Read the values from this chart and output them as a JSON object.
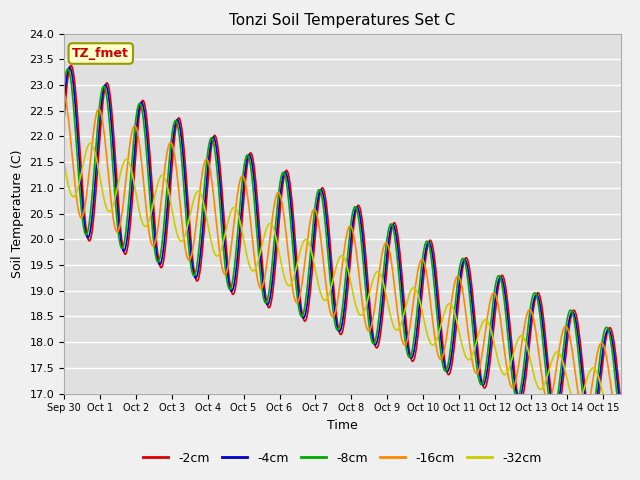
{
  "title": "Tonzi Soil Temperatures Set C",
  "xlabel": "Time",
  "ylabel": "Soil Temperature (C)",
  "ylim": [
    17.0,
    24.0
  ],
  "yticks": [
    17.0,
    17.5,
    18.0,
    18.5,
    19.0,
    19.5,
    20.0,
    20.5,
    21.0,
    21.5,
    22.0,
    22.5,
    23.0,
    23.5,
    24.0
  ],
  "colors": {
    "-2cm": "#dd0000",
    "-4cm": "#0000cc",
    "-8cm": "#00aa00",
    "-16cm": "#ff8800",
    "-32cm": "#cccc00"
  },
  "legend_labels": [
    "-2cm",
    "-4cm",
    "-8cm",
    "-16cm",
    "-32cm"
  ],
  "xtick_labels": [
    "Sep 30",
    "Oct 1",
    "Oct 2",
    "Oct 3",
    "Oct 4",
    "Oct 5",
    "Oct 6",
    "Oct 7",
    "Oct 8",
    "Oct 9",
    "Oct 10",
    "Oct 11",
    "Oct 12",
    "Oct 13",
    "Oct 14",
    "Oct 15"
  ],
  "xtick_labels_display": [
    "Sep 30",
    "Oct 1",
    "Oct 2",
    "Oct 3",
    "Oct 4",
    "Oct 5",
    "Oct 6",
    "Oct 7",
    "Oct 8",
    "Oct 9",
    "Oct 10",
    "Oct 11",
    "Oct 12",
    "Oct 13",
    "Oct 14",
    "Oct 15"
  ],
  "annotation_text": "TZ_fmet",
  "annotation_color": "#cc0000",
  "annotation_bg": "#ffffcc",
  "plot_bg_color": "#e0e0e0",
  "fig_bg_color": "#f0f0f0",
  "grid_color": "#ffffff",
  "linewidth": 1.2
}
